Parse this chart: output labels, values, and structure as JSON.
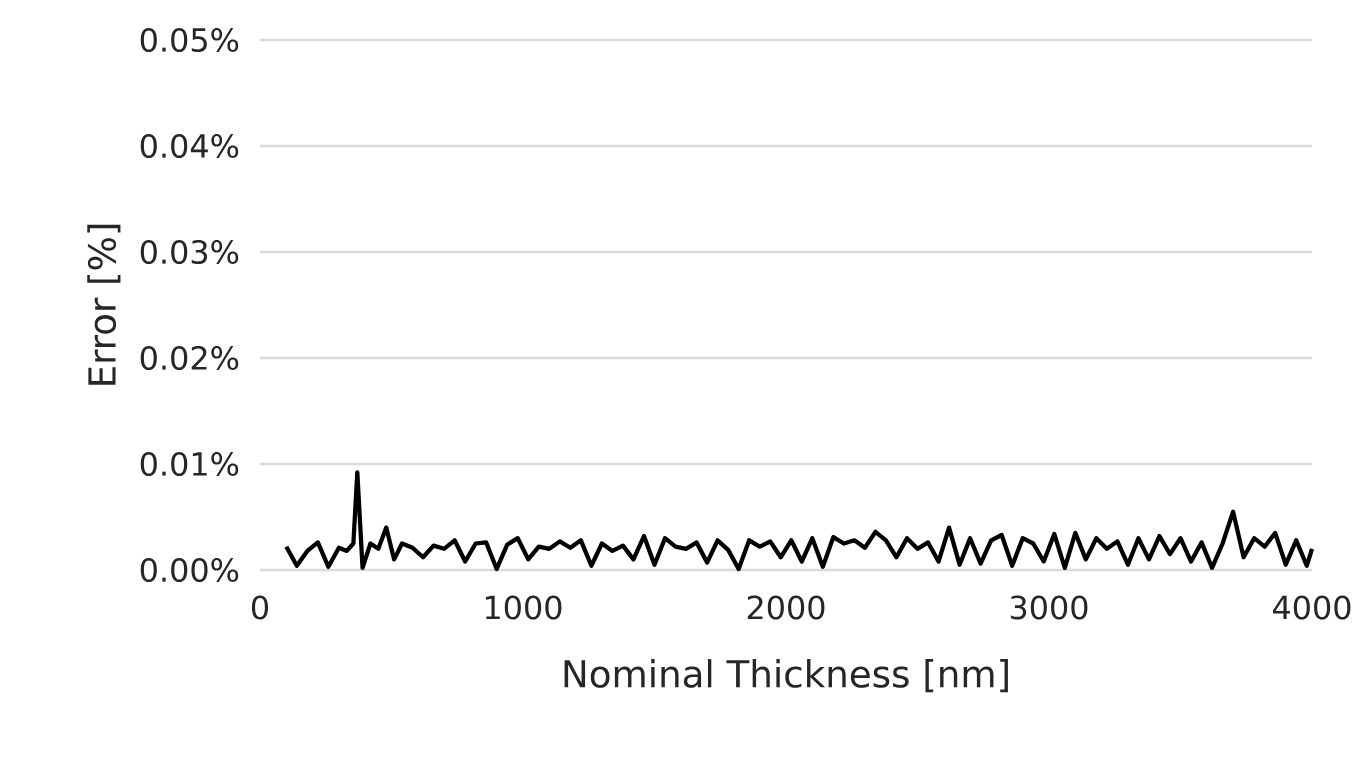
{
  "chart_data": {
    "type": "line",
    "xlabel": "Nominal Thickness [nm]",
    "ylabel": "Error [%]",
    "xlim": [
      0,
      4000
    ],
    "xticks": [
      0,
      1000,
      2000,
      3000,
      4000
    ],
    "ylim": [
      0,
      0.05
    ],
    "yticks": [
      {
        "value": 0,
        "label": "0.00%"
      },
      {
        "value": 0.01,
        "label": "0.01%"
      },
      {
        "value": 0.02,
        "label": "0.02%"
      },
      {
        "value": 0.03,
        "label": "0.03%"
      },
      {
        "value": 0.04,
        "label": "0.04%"
      },
      {
        "value": 0.05,
        "label": "0.05%"
      }
    ],
    "grid": "y",
    "marker": "none",
    "line_style": "solid",
    "series": [
      {
        "color": "#000000",
        "x": [
          100,
          140,
          180,
          220,
          260,
          300,
          330,
          355,
          370,
          390,
          420,
          450,
          480,
          510,
          540,
          580,
          620,
          660,
          700,
          740,
          780,
          820,
          860,
          900,
          940,
          980,
          1020,
          1060,
          1100,
          1140,
          1180,
          1220,
          1260,
          1300,
          1340,
          1380,
          1420,
          1460,
          1500,
          1540,
          1580,
          1620,
          1660,
          1700,
          1740,
          1780,
          1820,
          1860,
          1900,
          1940,
          1980,
          2020,
          2060,
          2100,
          2140,
          2180,
          2220,
          2260,
          2300,
          2340,
          2380,
          2420,
          2460,
          2500,
          2540,
          2580,
          2620,
          2660,
          2700,
          2740,
          2780,
          2820,
          2860,
          2900,
          2940,
          2980,
          3020,
          3060,
          3100,
          3140,
          3180,
          3220,
          3260,
          3300,
          3340,
          3380,
          3420,
          3460,
          3500,
          3540,
          3580,
          3620,
          3660,
          3700,
          3740,
          3780,
          3820,
          3860,
          3900,
          3940,
          3980,
          4000
        ],
        "values": [
          0.0022,
          0.0004,
          0.0018,
          0.0026,
          0.0003,
          0.0021,
          0.0018,
          0.0025,
          0.0092,
          0.0002,
          0.0025,
          0.002,
          0.004,
          0.001,
          0.0025,
          0.0021,
          0.0012,
          0.0023,
          0.002,
          0.0028,
          0.0008,
          0.0025,
          0.0026,
          0.0001,
          0.0024,
          0.003,
          0.001,
          0.0022,
          0.002,
          0.0027,
          0.0021,
          0.0028,
          0.0004,
          0.0025,
          0.0018,
          0.0023,
          0.001,
          0.0032,
          0.0005,
          0.003,
          0.0022,
          0.002,
          0.0026,
          0.0007,
          0.0028,
          0.0019,
          0.0001,
          0.0028,
          0.0022,
          0.0027,
          0.0012,
          0.0028,
          0.0008,
          0.003,
          0.0003,
          0.0031,
          0.0025,
          0.0028,
          0.0021,
          0.0036,
          0.0028,
          0.0012,
          0.003,
          0.002,
          0.0026,
          0.0008,
          0.004,
          0.0005,
          0.003,
          0.0006,
          0.0028,
          0.0033,
          0.0004,
          0.003,
          0.0025,
          0.0008,
          0.0034,
          0.0002,
          0.0035,
          0.001,
          0.003,
          0.002,
          0.0027,
          0.0005,
          0.003,
          0.001,
          0.0032,
          0.0015,
          0.003,
          0.0008,
          0.0026,
          0.0002,
          0.0025,
          0.0055,
          0.0012,
          0.003,
          0.0022,
          0.0035,
          0.0005,
          0.0028,
          0.0004,
          0.002
        ]
      }
    ]
  }
}
